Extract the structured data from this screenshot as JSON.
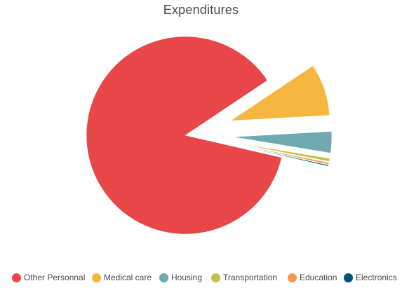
{
  "chart_data": {
    "type": "pie",
    "title": "Expenditures",
    "exploded": true,
    "legend_position": "bottom",
    "slices": [
      {
        "name": "Other Personnal",
        "value": 87,
        "color": "#e94649"
      },
      {
        "name": "Medical care",
        "value": 8.5,
        "color": "#f6b53f"
      },
      {
        "name": "Housing",
        "value": 3.5,
        "color": "#6faab0"
      },
      {
        "name": "Transportation",
        "value": 0.5,
        "color": "#c4c24a"
      },
      {
        "name": "Education",
        "value": 0.3,
        "color": "#fb954f"
      },
      {
        "name": "Electronics",
        "value": 0.2,
        "color": "#005277"
      }
    ]
  }
}
